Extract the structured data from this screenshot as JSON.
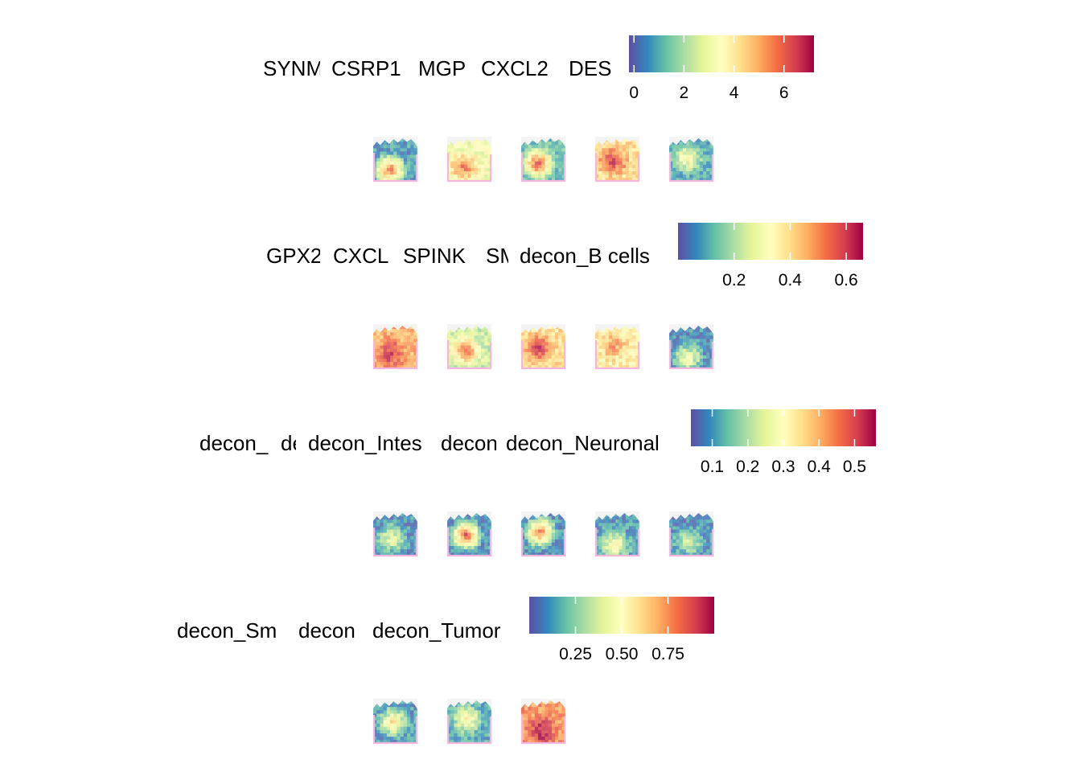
{
  "colorscale": {
    "name": "Spectral (reversed)",
    "stops": [
      "#5e4fa2",
      "#3288bd",
      "#66c2a5",
      "#abdda4",
      "#e6f598",
      "#ffffbf",
      "#fee08b",
      "#fdae61",
      "#f46d43",
      "#d53e4f",
      "#9e0142"
    ]
  },
  "tissue_background": "#f4f4f4",
  "chart_data": [
    {
      "type": "heatmap",
      "panels": [
        "SYNM",
        "CSRP1",
        "MGP",
        "CXCL2",
        "DES"
      ],
      "legend": {
        "ticks": [
          0,
          2,
          4,
          6
        ],
        "tick_labels": [
          "0",
          "2",
          "4",
          "6"
        ],
        "range": [
          -0.2,
          7.2
        ]
      }
    },
    {
      "type": "heatmap",
      "panels": [
        "GPX2",
        "CXCL",
        "SPINK",
        "SM",
        "decon_B cells"
      ],
      "legend": {
        "ticks": [
          0.2,
          0.4,
          0.6
        ],
        "tick_labels": [
          "0.2",
          "0.4",
          "0.6"
        ],
        "range": [
          0.0,
          0.66
        ]
      }
    },
    {
      "type": "heatmap",
      "panels": [
        "decon_",
        "de",
        "decon_Intes",
        "decon",
        "decon_Neuronal"
      ],
      "legend": {
        "ticks": [
          0.1,
          0.2,
          0.3,
          0.4,
          0.5
        ],
        "tick_labels": [
          "0.1",
          "0.2",
          "0.3",
          "0.4",
          "0.5"
        ],
        "range": [
          0.04,
          0.56
        ]
      }
    },
    {
      "type": "heatmap",
      "panels": [
        "decon_Sm",
        "decon",
        "decon_Tumor"
      ],
      "legend": {
        "ticks": [
          0.25,
          0.5,
          0.75
        ],
        "tick_labels": [
          "0.25",
          "0.50",
          "0.75"
        ],
        "range": [
          0.0,
          1.0
        ]
      }
    }
  ]
}
